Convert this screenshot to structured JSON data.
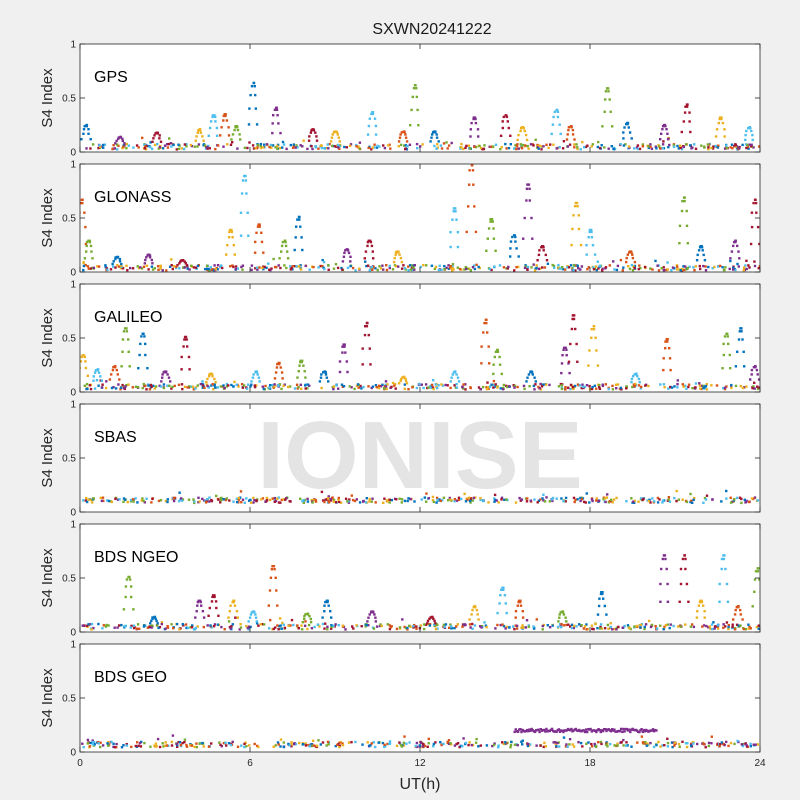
{
  "chart_data": {
    "type": "scatter",
    "title": "SXWN20241222",
    "xlabel": "UT(h)",
    "ylabel": "S4 Index",
    "xlim": [
      0,
      24
    ],
    "xticks": [
      "0",
      "6",
      "12",
      "18",
      "24"
    ],
    "ylim": [
      0,
      1
    ],
    "yticks": [
      "0",
      "0.5",
      "1"
    ],
    "grid": false,
    "watermark": "IONISE",
    "palette": [
      "#0072bd",
      "#d95319",
      "#edb120",
      "#7e2f8e",
      "#77ac30",
      "#4dbeee",
      "#a2142f"
    ],
    "panels": [
      {
        "name": "GPS",
        "baseline": 0.06,
        "spikes": [
          {
            "x": 0.2,
            "y": 0.26
          },
          {
            "x": 1.4,
            "y": 0.15
          },
          {
            "x": 2.7,
            "y": 0.19
          },
          {
            "x": 4.2,
            "y": 0.22
          },
          {
            "x": 4.7,
            "y": 0.35
          },
          {
            "x": 5.1,
            "y": 0.36
          },
          {
            "x": 5.5,
            "y": 0.25
          },
          {
            "x": 6.1,
            "y": 0.65
          },
          {
            "x": 6.9,
            "y": 0.42
          },
          {
            "x": 8.2,
            "y": 0.22
          },
          {
            "x": 9.0,
            "y": 0.2
          },
          {
            "x": 10.3,
            "y": 0.38
          },
          {
            "x": 11.4,
            "y": 0.2
          },
          {
            "x": 11.8,
            "y": 0.63
          },
          {
            "x": 12.5,
            "y": 0.2
          },
          {
            "x": 13.9,
            "y": 0.33
          },
          {
            "x": 15.0,
            "y": 0.35
          },
          {
            "x": 15.6,
            "y": 0.24
          },
          {
            "x": 16.8,
            "y": 0.4
          },
          {
            "x": 17.3,
            "y": 0.25
          },
          {
            "x": 18.6,
            "y": 0.6
          },
          {
            "x": 19.3,
            "y": 0.28
          },
          {
            "x": 20.6,
            "y": 0.26
          },
          {
            "x": 21.4,
            "y": 0.45
          },
          {
            "x": 22.6,
            "y": 0.33
          },
          {
            "x": 23.6,
            "y": 0.24
          }
        ]
      },
      {
        "name": "GLONASS",
        "baseline": 0.05,
        "spikes": [
          {
            "x": 0.05,
            "y": 0.68
          },
          {
            "x": 0.3,
            "y": 0.3
          },
          {
            "x": 1.3,
            "y": 0.15
          },
          {
            "x": 2.4,
            "y": 0.17
          },
          {
            "x": 3.6,
            "y": 0.12
          },
          {
            "x": 5.3,
            "y": 0.4
          },
          {
            "x": 5.8,
            "y": 0.9
          },
          {
            "x": 6.3,
            "y": 0.45
          },
          {
            "x": 7.2,
            "y": 0.3
          },
          {
            "x": 7.7,
            "y": 0.52
          },
          {
            "x": 9.4,
            "y": 0.22
          },
          {
            "x": 10.2,
            "y": 0.3
          },
          {
            "x": 11.2,
            "y": 0.2
          },
          {
            "x": 13.2,
            "y": 0.6
          },
          {
            "x": 13.8,
            "y": 1.0
          },
          {
            "x": 14.5,
            "y": 0.5
          },
          {
            "x": 15.3,
            "y": 0.35
          },
          {
            "x": 15.8,
            "y": 0.82
          },
          {
            "x": 16.3,
            "y": 0.25
          },
          {
            "x": 17.5,
            "y": 0.65
          },
          {
            "x": 18.0,
            "y": 0.4
          },
          {
            "x": 19.4,
            "y": 0.2
          },
          {
            "x": 21.3,
            "y": 0.7
          },
          {
            "x": 21.9,
            "y": 0.25
          },
          {
            "x": 23.1,
            "y": 0.3
          },
          {
            "x": 23.8,
            "y": 0.68
          }
        ]
      },
      {
        "name": "GALILEO",
        "baseline": 0.06,
        "spikes": [
          {
            "x": 0.1,
            "y": 0.35
          },
          {
            "x": 0.6,
            "y": 0.22
          },
          {
            "x": 1.2,
            "y": 0.25
          },
          {
            "x": 1.6,
            "y": 0.6
          },
          {
            "x": 2.2,
            "y": 0.55
          },
          {
            "x": 3.0,
            "y": 0.2
          },
          {
            "x": 3.7,
            "y": 0.52
          },
          {
            "x": 4.6,
            "y": 0.18
          },
          {
            "x": 6.2,
            "y": 0.2
          },
          {
            "x": 7.0,
            "y": 0.28
          },
          {
            "x": 7.8,
            "y": 0.3
          },
          {
            "x": 8.6,
            "y": 0.2
          },
          {
            "x": 9.3,
            "y": 0.45
          },
          {
            "x": 10.1,
            "y": 0.65
          },
          {
            "x": 11.4,
            "y": 0.15
          },
          {
            "x": 13.2,
            "y": 0.2
          },
          {
            "x": 14.3,
            "y": 0.68
          },
          {
            "x": 14.7,
            "y": 0.4
          },
          {
            "x": 15.9,
            "y": 0.2
          },
          {
            "x": 17.1,
            "y": 0.42
          },
          {
            "x": 17.4,
            "y": 0.72
          },
          {
            "x": 18.1,
            "y": 0.62
          },
          {
            "x": 19.6,
            "y": 0.18
          },
          {
            "x": 20.7,
            "y": 0.5
          },
          {
            "x": 22.8,
            "y": 0.55
          },
          {
            "x": 23.3,
            "y": 0.6
          },
          {
            "x": 23.8,
            "y": 0.25
          }
        ]
      },
      {
        "name": "SBAS",
        "baseline": 0.12,
        "spikes": []
      },
      {
        "name": "BDS NGEO",
        "baseline": 0.06,
        "spikes": [
          {
            "x": 1.7,
            "y": 0.52
          },
          {
            "x": 2.6,
            "y": 0.15
          },
          {
            "x": 4.2,
            "y": 0.3
          },
          {
            "x": 4.7,
            "y": 0.35
          },
          {
            "x": 5.4,
            "y": 0.3
          },
          {
            "x": 6.1,
            "y": 0.2
          },
          {
            "x": 6.8,
            "y": 0.62
          },
          {
            "x": 8.0,
            "y": 0.18
          },
          {
            "x": 8.7,
            "y": 0.3
          },
          {
            "x": 10.3,
            "y": 0.2
          },
          {
            "x": 12.4,
            "y": 0.15
          },
          {
            "x": 13.9,
            "y": 0.25
          },
          {
            "x": 14.9,
            "y": 0.42
          },
          {
            "x": 15.5,
            "y": 0.3
          },
          {
            "x": 17.0,
            "y": 0.2
          },
          {
            "x": 18.4,
            "y": 0.38
          },
          {
            "x": 20.6,
            "y": 0.72
          },
          {
            "x": 21.3,
            "y": 0.72
          },
          {
            "x": 21.9,
            "y": 0.3
          },
          {
            "x": 22.7,
            "y": 0.72
          },
          {
            "x": 23.2,
            "y": 0.25
          },
          {
            "x": 23.9,
            "y": 0.6
          }
        ]
      },
      {
        "name": "BDS GEO",
        "baseline": 0.08,
        "spikes": [],
        "band": {
          "x_start": 15.3,
          "x_end": 20.3,
          "y": 0.21
        }
      }
    ]
  }
}
